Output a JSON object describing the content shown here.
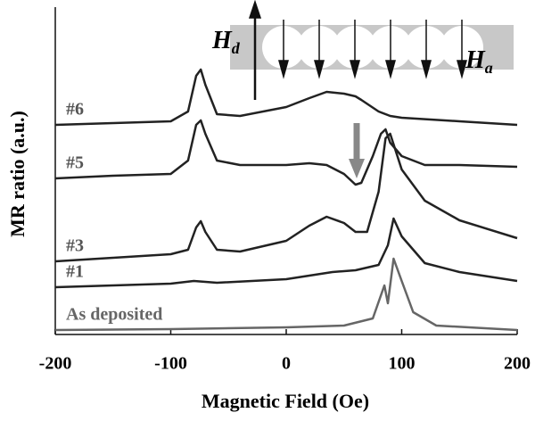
{
  "chart_data": {
    "type": "line",
    "xlabel": "Magnetic Field (Oe)",
    "ylabel": "MR ratio (a.u.)",
    "xlim": [
      -200,
      200
    ],
    "xticks": [
      -200,
      -100,
      0,
      100,
      200
    ],
    "ylim": [
      0,
      370
    ],
    "inset_labels": [
      {
        "symbol": "H",
        "subscript": "d"
      },
      {
        "symbol": "H",
        "subscript": "a"
      }
    ],
    "series": [
      {
        "name": "#6",
        "color": "#222222",
        "x": [
          -200,
          -150,
          -100,
          -85,
          -78,
          -74,
          -70,
          -60,
          -40,
          0,
          20,
          35,
          50,
          60,
          65,
          80,
          90,
          100,
          150,
          200
        ],
        "values": [
          235,
          237,
          239,
          250,
          290,
          297,
          280,
          247,
          245,
          255,
          265,
          272,
          270,
          267,
          263,
          250,
          245,
          243,
          239,
          235
        ]
      },
      {
        "name": "#5",
        "color": "#222222",
        "x": [
          -200,
          -150,
          -100,
          -85,
          -78,
          -74,
          -70,
          -60,
          -40,
          0,
          20,
          35,
          50,
          60,
          65,
          75,
          82,
          86,
          90,
          100,
          120,
          150,
          200
        ],
        "values": [
          175,
          178,
          180,
          195,
          235,
          240,
          225,
          195,
          190,
          190,
          192,
          190,
          180,
          168,
          170,
          200,
          225,
          230,
          215,
          200,
          190,
          190,
          188
        ]
      },
      {
        "name": "#3",
        "color": "#222222",
        "x": [
          -200,
          -150,
          -100,
          -85,
          -78,
          -74,
          -70,
          -60,
          -40,
          0,
          20,
          35,
          50,
          60,
          70,
          80,
          86,
          90,
          100,
          120,
          150,
          200
        ],
        "values": [
          82,
          86,
          90,
          95,
          120,
          127,
          115,
          95,
          93,
          105,
          122,
          132,
          125,
          115,
          115,
          160,
          220,
          225,
          185,
          150,
          128,
          108
        ]
      },
      {
        "name": "#1",
        "color": "#222222",
        "x": [
          -200,
          -150,
          -100,
          -80,
          -60,
          0,
          40,
          60,
          80,
          88,
          93,
          100,
          120,
          150,
          200
        ],
        "values": [
          53,
          55,
          57,
          60,
          58,
          62,
          70,
          72,
          78,
          100,
          130,
          110,
          80,
          70,
          60
        ]
      },
      {
        "name": "As deposited",
        "color": "#666666",
        "x": [
          -200,
          -100,
          0,
          50,
          75,
          85,
          88,
          93,
          100,
          110,
          130,
          200
        ],
        "values": [
          5,
          6,
          8,
          10,
          18,
          55,
          35,
          85,
          60,
          25,
          10,
          5
        ]
      }
    ]
  }
}
